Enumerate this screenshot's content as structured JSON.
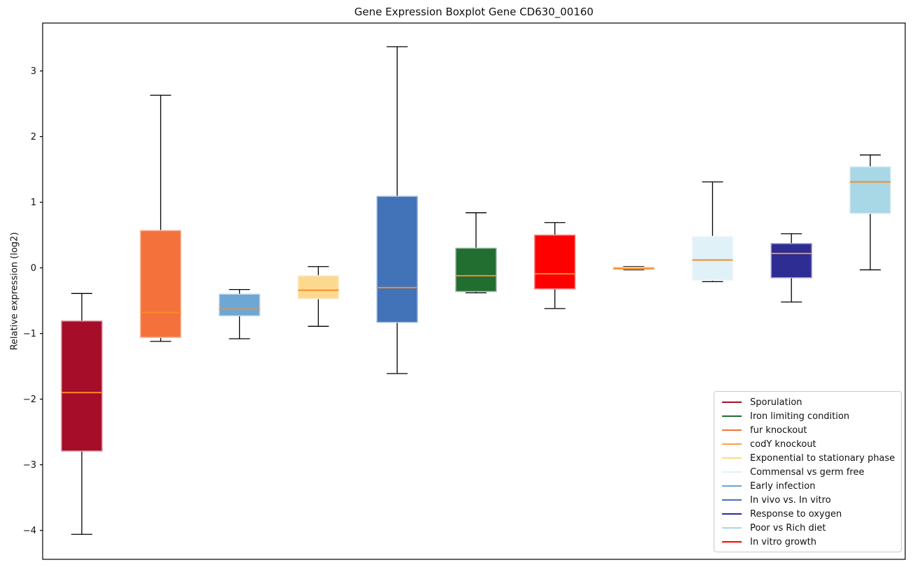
{
  "chart_data": {
    "type": "boxplot",
    "title": "Gene Expression Boxplot Gene CD630_00160",
    "ylabel": "Relative expression (log2)",
    "xlabel": "",
    "ylim": [
      -4.44,
      3.73
    ],
    "yticks": [
      3,
      2,
      1,
      0,
      -1,
      -2,
      -3,
      -4
    ],
    "grid": false,
    "x_tick_labels": "none",
    "median_color": "#f78b29",
    "whisker_color": "#000000",
    "legend_position": "lower right",
    "boxes": [
      {
        "label": "Sporulation",
        "color": "#a50d28",
        "whislo": -4.06,
        "q1": -2.79,
        "med": -1.9,
        "q3": -0.81,
        "whishi": -0.39
      },
      {
        "label": "fur knockout",
        "color": "#f4713c",
        "whislo": -1.12,
        "q1": -1.06,
        "med": -0.68,
        "q3": 0.57,
        "whishi": 2.63
      },
      {
        "label": "Early infection",
        "color": "#6ea6d4",
        "whislo": -1.08,
        "q1": -0.73,
        "med": -0.63,
        "q3": -0.4,
        "whishi": -0.33
      },
      {
        "label": "Exponential to stationary phase",
        "color": "#fcd98f",
        "whislo": -0.89,
        "q1": -0.47,
        "med": -0.34,
        "q3": -0.12,
        "whishi": 0.02
      },
      {
        "label": "In vivo vs. In vitro",
        "color": "#4273b8",
        "whislo": -1.61,
        "q1": -0.83,
        "med": -0.3,
        "q3": 1.09,
        "whishi": 3.37
      },
      {
        "label": "Iron limiting condition",
        "color": "#226d30",
        "whislo": -0.38,
        "q1": -0.36,
        "med": -0.12,
        "q3": 0.3,
        "whishi": 0.84
      },
      {
        "label": "In vitro growth",
        "color": "#ff0000",
        "whislo": -0.62,
        "q1": -0.32,
        "med": -0.09,
        "q3": 0.5,
        "whishi": 0.69
      },
      {
        "label": "codY knockout",
        "color": "#f9a24a",
        "whislo": -0.03,
        "q1": -0.02,
        "med": -0.01,
        "q3": 0.01,
        "whishi": 0.02
      },
      {
        "label": "Commensal vs germ free",
        "color": "#e0f1f8",
        "whislo": -0.21,
        "q1": -0.19,
        "med": 0.12,
        "q3": 0.48,
        "whishi": 1.31
      },
      {
        "label": "Response to oxygen",
        "color": "#2d2d93",
        "whislo": -0.52,
        "q1": -0.15,
        "med": 0.22,
        "q3": 0.37,
        "whishi": 0.52
      },
      {
        "label": "Poor vs Rich diet",
        "color": "#a8d7e6",
        "whislo": -0.03,
        "q1": 0.83,
        "med": 1.31,
        "q3": 1.54,
        "whishi": 1.72
      }
    ],
    "legend": [
      {
        "label": "Sporulation",
        "color": "#a50d28"
      },
      {
        "label": "Iron limiting condition",
        "color": "#226d30"
      },
      {
        "label": "fur knockout",
        "color": "#f4713c"
      },
      {
        "label": "codY knockout",
        "color": "#f9a24a"
      },
      {
        "label": "Exponential to stationary phase",
        "color": "#fcd98f"
      },
      {
        "label": "Commensal vs germ free",
        "color": "#e0f1f8"
      },
      {
        "label": "Early infection",
        "color": "#6ea6d4"
      },
      {
        "label": "In vivo vs. In vitro",
        "color": "#4273b8"
      },
      {
        "label": "Response to oxygen",
        "color": "#2d2d93"
      },
      {
        "label": "Poor vs Rich diet",
        "color": "#a8d7e6"
      },
      {
        "label": "In vitro growth",
        "color": "#ff0000"
      }
    ]
  }
}
